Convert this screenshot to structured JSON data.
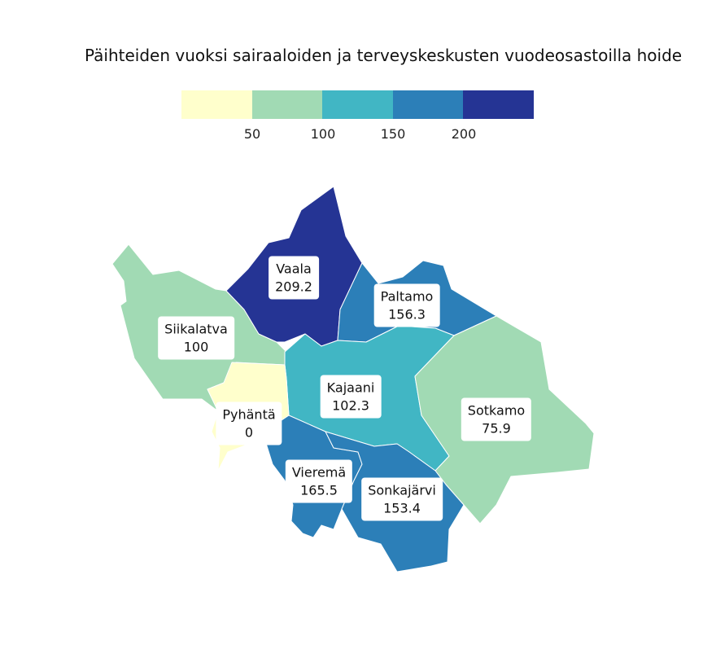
{
  "chart_data": {
    "type": "choropleth",
    "title": "Päihteiden vuoksi sairaaloiden ja terveyskeskusten vuodeosastoilla hoide",
    "legend": {
      "placement": "top",
      "breaks": [
        "50",
        "100",
        "150",
        "200"
      ],
      "colors": [
        "#ffffcc",
        "#a1dab4",
        "#41b6c4",
        "#2c7fb8",
        "#253494"
      ]
    },
    "regions": [
      {
        "name": "Vaala",
        "value": "209.2",
        "color": "#253494"
      },
      {
        "name": "Siikalatva",
        "value": "100",
        "color": "#a1dab4"
      },
      {
        "name": "Paltamo",
        "value": "156.3",
        "color": "#2c7fb8"
      },
      {
        "name": "Kajaani",
        "value": "102.3",
        "color": "#41b6c4"
      },
      {
        "name": "Sotkamo",
        "value": "75.9",
        "color": "#a1dab4"
      },
      {
        "name": "Pyhäntä",
        "value": "0",
        "color": "#ffffcc"
      },
      {
        "name": "Vieremä",
        "value": "165.5",
        "color": "#2c7fb8"
      },
      {
        "name": "Sonkajärvi",
        "value": "153.4",
        "color": "#2c7fb8"
      }
    ]
  }
}
